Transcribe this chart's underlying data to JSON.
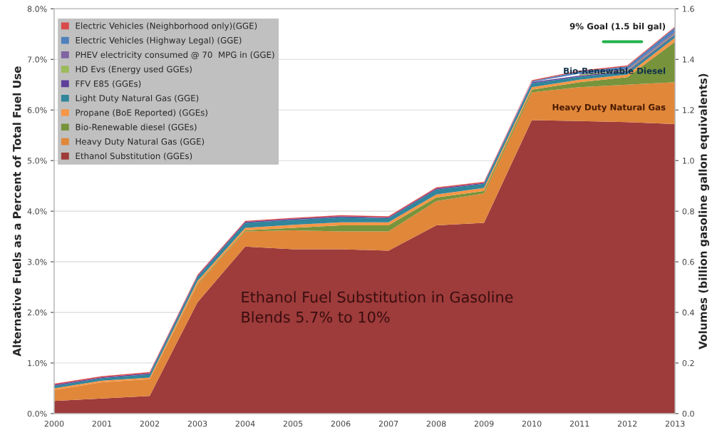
{
  "chart_data": {
    "type": "area",
    "stacked": true,
    "ylabel": "Alternative Fuels as a Percent of Total Fuel Use",
    "y2label": "Volumes (billion gasoline gallon equivalents)",
    "x": [
      2000,
      2001,
      2002,
      2003,
      2004,
      2005,
      2006,
      2007,
      2008,
      2009,
      2010,
      2011,
      2012,
      2013
    ],
    "xlim": [
      2000,
      2013
    ],
    "xticks": [
      2000,
      2001,
      2002,
      2003,
      2004,
      2005,
      2006,
      2007,
      2008,
      2009,
      2010,
      2011,
      2012,
      2013
    ],
    "ylim": [
      0,
      8
    ],
    "yticks": [
      {
        "value": 0,
        "label": "0.0%"
      },
      {
        "value": 1,
        "label": "1.0%"
      },
      {
        "value": 2,
        "label": "2.0%"
      },
      {
        "value": 3,
        "label": "3.0%"
      },
      {
        "value": 4,
        "label": "4.0%"
      },
      {
        "value": 5,
        "label": "5.0%"
      },
      {
        "value": 6,
        "label": "6.0%"
      },
      {
        "value": 7,
        "label": "7.0%"
      },
      {
        "value": 8,
        "label": "8.0%"
      }
    ],
    "y2lim": [
      0,
      1.6
    ],
    "y2ticks": [
      {
        "value": 0,
        "label": "0.0"
      },
      {
        "value": 0.2,
        "label": "0.2"
      },
      {
        "value": 0.4,
        "label": "0.4"
      },
      {
        "value": 0.6,
        "label": "0.6"
      },
      {
        "value": 0.8,
        "label": "0.8"
      },
      {
        "value": 1.0,
        "label": "1.0"
      },
      {
        "value": 1.2,
        "label": "1.2"
      },
      {
        "value": 1.4,
        "label": "1.4"
      },
      {
        "value": 1.6,
        "label": "1.6"
      }
    ],
    "grid": "y",
    "legend": "top left",
    "series": [
      {
        "name": "Ethanol Substitution (GGEs)",
        "color": "#9e3b3b",
        "values": [
          0.25,
          0.3,
          0.35,
          2.2,
          3.3,
          3.25,
          3.25,
          3.22,
          3.72,
          3.77,
          5.8,
          5.78,
          5.76,
          5.72
        ]
      },
      {
        "name": "Heavy Duty Natural Gas (GGE)",
        "color": "#e0873a",
        "values": [
          0.22,
          0.32,
          0.33,
          0.35,
          0.3,
          0.37,
          0.35,
          0.38,
          0.48,
          0.58,
          0.55,
          0.67,
          0.74,
          0.83
        ]
      },
      {
        "name": "Bio-Renewable diesel (GGEs)",
        "color": "#77933c",
        "values": [
          0,
          0,
          0,
          0.02,
          0.02,
          0.05,
          0.12,
          0.12,
          0.07,
          0.05,
          0.05,
          0.1,
          0.15,
          0.8
        ]
      },
      {
        "name": "Propane (BoE Reported) (GGEs)",
        "color": "#f79646",
        "values": [
          0.03,
          0.03,
          0.03,
          0.05,
          0.05,
          0.06,
          0.06,
          0.06,
          0.06,
          0.06,
          0.05,
          0.05,
          0.05,
          0.08
        ]
      },
      {
        "name": "Light Duty Natural Gas (GGE)",
        "color": "#31869b",
        "values": [
          0.05,
          0.05,
          0.07,
          0.08,
          0.1,
          0.1,
          0.1,
          0.08,
          0.1,
          0.08,
          0.08,
          0.06,
          0.05,
          0.05
        ]
      },
      {
        "name": "FFV E85 (GGEs)",
        "color": "#5f3f9a",
        "values": [
          0.02,
          0.02,
          0.02,
          0.02,
          0.02,
          0.02,
          0.02,
          0.02,
          0.02,
          0.02,
          0.02,
          0.02,
          0.02,
          0.02
        ]
      },
      {
        "name": "HD Evs (Energy used GGEs)",
        "color": "#9bbb59",
        "values": [
          null,
          null,
          null,
          null,
          null,
          null,
          null,
          null,
          null,
          null,
          null,
          0.02,
          0.02,
          0.02
        ]
      },
      {
        "name": "PHEV electricity consumed @ 70  MPG in (GGE)",
        "color": "#8064a2",
        "values": [
          null,
          null,
          null,
          null,
          null,
          null,
          null,
          null,
          null,
          null,
          null,
          0.02,
          0.02,
          0.03
        ]
      },
      {
        "name": "Electric Vehicles (Highway Legal) (GGE)",
        "color": "#4f81bd",
        "values": [
          null,
          null,
          null,
          null,
          null,
          null,
          null,
          null,
          null,
          null,
          0.02,
          0.04,
          0.05,
          0.08
        ]
      },
      {
        "name": "Electric Vehicles (Neighborhood only)(GGE)",
        "color": "#d94a4a",
        "values": [
          0.02,
          0.02,
          0.02,
          0.02,
          0.02,
          0.02,
          0.02,
          0.02,
          0.02,
          0.02,
          0.02,
          0.02,
          0.02,
          0.02
        ]
      },
      {
        "type": "line",
        "color": "#22b14c",
        "x": [
          2011.5,
          2012.3
        ],
        "values": [
          7.35,
          7.35
        ]
      }
    ],
    "annotations": [
      "Ethanol Fuel Substitution in Gasoline\nBlends 5.7% to 10%",
      "Heavy Duty Natural Gas",
      "Bio-Renewable Diesel",
      "9% Goal (1.5 bil gal)"
    ]
  }
}
